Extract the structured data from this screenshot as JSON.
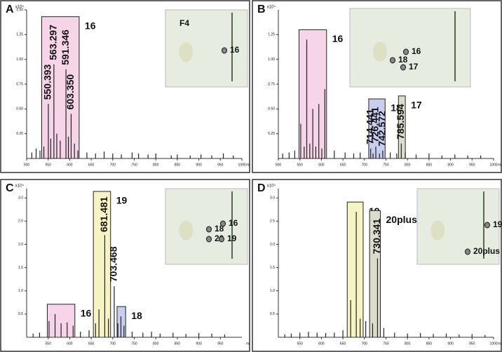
{
  "chart_data": [
    {
      "type": "spectrum",
      "panel": "A",
      "y_label": "x10⁴",
      "x_label": "m/z",
      "color": "#222222",
      "xlim": [
        500,
        1000
      ],
      "xticks": [
        500,
        550,
        600,
        650,
        700,
        750,
        800,
        850,
        900,
        950,
        1000
      ],
      "ylim": [
        0,
        1.5
      ],
      "yticks": [
        {
          "value": 0.25,
          "label": "0.25"
        },
        {
          "value": 0.5,
          "label": "0.50"
        },
        {
          "value": 0.75,
          "label": "0.75"
        },
        {
          "value": 1.0,
          "label": "1.00"
        },
        {
          "value": 1.25,
          "label": "1.25"
        },
        {
          "value": 1.5,
          "label": "1.50"
        }
      ],
      "x": [
        512,
        522,
        531,
        540,
        550.393,
        556,
        563.297,
        570,
        578,
        591.346,
        597,
        603.35,
        611,
        619,
        640,
        660,
        680,
        700,
        720,
        745,
        760,
        782,
        800,
        836,
        850,
        880,
        905,
        930,
        957,
        980
      ],
      "values": [
        0.06,
        0.1,
        0.08,
        0.12,
        0.55,
        0.2,
        0.95,
        0.25,
        0.18,
        0.9,
        0.22,
        0.45,
        0.15,
        0.08,
        0.06,
        0.05,
        0.07,
        0.05,
        0.04,
        0.06,
        0.05,
        0.04,
        0.05,
        0.03,
        0.04,
        0.03,
        0.04,
        0.03,
        0.05,
        0.03
      ],
      "groups": [
        {
          "label": "16",
          "color": "#f6d5e8",
          "range": [
            535,
            622
          ]
        }
      ],
      "annotations": [
        {
          "label": "550.393",
          "x": 550.393
        },
        {
          "label": "563.297",
          "x": 563.297
        },
        {
          "label": "591.346",
          "x": 591.346
        },
        {
          "label": "603.350",
          "x": 603.35
        }
      ],
      "inset": [
        "F4",
        "16"
      ]
    },
    {
      "type": "spectrum",
      "panel": "B",
      "y_label": "x10⁴",
      "x_label": "m/z",
      "color": "#222222",
      "xlim": [
        500,
        1000
      ],
      "xticks": [
        500,
        550,
        600,
        650,
        700,
        750,
        800,
        850,
        900,
        950,
        1000
      ],
      "ylim": [
        0,
        1.5
      ],
      "yticks": [
        {
          "value": 0.25,
          "label": "0.25"
        },
        {
          "value": 0.5,
          "label": "0.50"
        },
        {
          "value": 0.75,
          "label": "0.75"
        },
        {
          "value": 1.0,
          "label": "1.00"
        },
        {
          "value": 1.25,
          "label": "1.25"
        }
      ],
      "x": [
        510,
        525,
        538,
        552,
        560,
        566,
        573,
        580,
        587,
        594,
        601,
        608,
        630,
        655,
        675,
        690,
        714.441,
        720,
        726.441,
        735,
        742.572,
        760,
        775,
        785.594,
        795,
        820,
        850,
        880,
        910,
        940,
        970
      ],
      "values": [
        0.05,
        0.06,
        0.08,
        0.35,
        0.12,
        1.2,
        0.15,
        0.5,
        0.12,
        0.55,
        0.1,
        0.7,
        0.08,
        0.06,
        0.05,
        0.06,
        0.1,
        0.05,
        0.12,
        0.05,
        0.08,
        0.06,
        0.05,
        0.15,
        0.06,
        0.04,
        0.05,
        0.03,
        0.04,
        0.03,
        0.03
      ],
      "groups": [
        {
          "label": "16",
          "color": "#f6d5e8",
          "range": [
            548,
            612
          ]
        },
        {
          "label": "18",
          "color": "#c9cdf0",
          "range": [
            710,
            748
          ]
        },
        {
          "label": "17",
          "color": "#dcdccc",
          "range": [
            779,
            795
          ]
        }
      ],
      "annotations": [
        {
          "label": "714.441",
          "x": 714.441
        },
        {
          "label": "726.441",
          "x": 726.441
        },
        {
          "label": "742.572",
          "x": 742.572
        },
        {
          "label": "785.594",
          "x": 785.594
        }
      ],
      "inset": [
        "16",
        "18",
        "17"
      ]
    },
    {
      "type": "spectrum",
      "panel": "C",
      "y_label": "x10⁴",
      "x_label": "m/z",
      "color": "#222222",
      "xlim": [
        500,
        1000
      ],
      "xticks": [
        550,
        600,
        650,
        700,
        750,
        800,
        850,
        900,
        950
      ],
      "ylim": [
        0,
        3.2
      ],
      "yticks": [
        {
          "value": 0.5,
          "label": "0.5"
        },
        {
          "value": 1.0,
          "label": "1.0"
        },
        {
          "value": 1.5,
          "label": "1.5"
        },
        {
          "value": 2.0,
          "label": "2.0"
        },
        {
          "value": 2.5,
          "label": "2.5"
        },
        {
          "value": 3.0,
          "label": "3.0"
        }
      ],
      "x": [
        515,
        530,
        552,
        566,
        580,
        594,
        608,
        625,
        645,
        660,
        668,
        681.481,
        690,
        703.468,
        712,
        719,
        726,
        745,
        770,
        790,
        810,
        840,
        870,
        900,
        930,
        960
      ],
      "values": [
        0.08,
        0.1,
        0.35,
        0.5,
        0.3,
        0.32,
        0.25,
        0.12,
        0.15,
        0.3,
        0.6,
        2.2,
        0.4,
        1.1,
        0.3,
        0.45,
        0.25,
        0.12,
        0.1,
        0.12,
        0.08,
        0.1,
        0.07,
        0.09,
        0.08,
        0.06
      ],
      "groups": [
        {
          "label": "16",
          "color": "#f6d5e8",
          "range": [
            548,
            612
          ]
        },
        {
          "label": "19",
          "color": "#f7f4c4",
          "range": [
            655,
            695
          ]
        },
        {
          "label": "18",
          "color": "#c9cdf0",
          "range": [
            710,
            730
          ]
        }
      ],
      "annotations": [
        {
          "label": "681.481",
          "x": 681.481
        },
        {
          "label": "703.468",
          "x": 703.468
        }
      ],
      "inset": [
        "18",
        "16",
        "20",
        "19"
      ]
    },
    {
      "type": "spectrum",
      "panel": "D",
      "y_label": "x10⁴",
      "x_label": "m/z",
      "color": "#222222",
      "xlim": [
        500,
        1000
      ],
      "xticks": [
        550,
        600,
        650,
        700,
        750,
        800,
        850,
        900,
        950,
        1000
      ],
      "ylim": [
        0,
        3.2
      ],
      "yticks": [
        {
          "value": 0.5,
          "label": "0.5"
        },
        {
          "value": 1.0,
          "label": "1.0"
        },
        {
          "value": 1.5,
          "label": "1.5"
        },
        {
          "value": 2.0,
          "label": "2.0"
        },
        {
          "value": 2.5,
          "label": "2.5"
        },
        {
          "value": 3.0,
          "label": "3.0"
        }
      ],
      "x": [
        515,
        530,
        550,
        570,
        590,
        610,
        630,
        650,
        668,
        681,
        690,
        703,
        719,
        730.341,
        745,
        770,
        800,
        830,
        860,
        890,
        920,
        950,
        980
      ],
      "values": [
        0.06,
        0.08,
        0.1,
        0.12,
        0.1,
        0.09,
        0.1,
        0.15,
        0.8,
        2.7,
        0.4,
        0.35,
        0.3,
        1.7,
        0.2,
        0.1,
        0.08,
        0.09,
        0.07,
        0.08,
        0.06,
        0.07,
        0.05
      ],
      "groups": [
        {
          "label": "19",
          "color": "#f7f4c4",
          "range": [
            660,
            697
          ]
        },
        {
          "label": "20plus",
          "color": "#dcdccc",
          "range": [
            712,
            737
          ]
        }
      ],
      "annotations": [
        {
          "label": "730.341",
          "x": 730.341
        }
      ],
      "inset": [
        "19",
        "20plus"
      ]
    }
  ]
}
